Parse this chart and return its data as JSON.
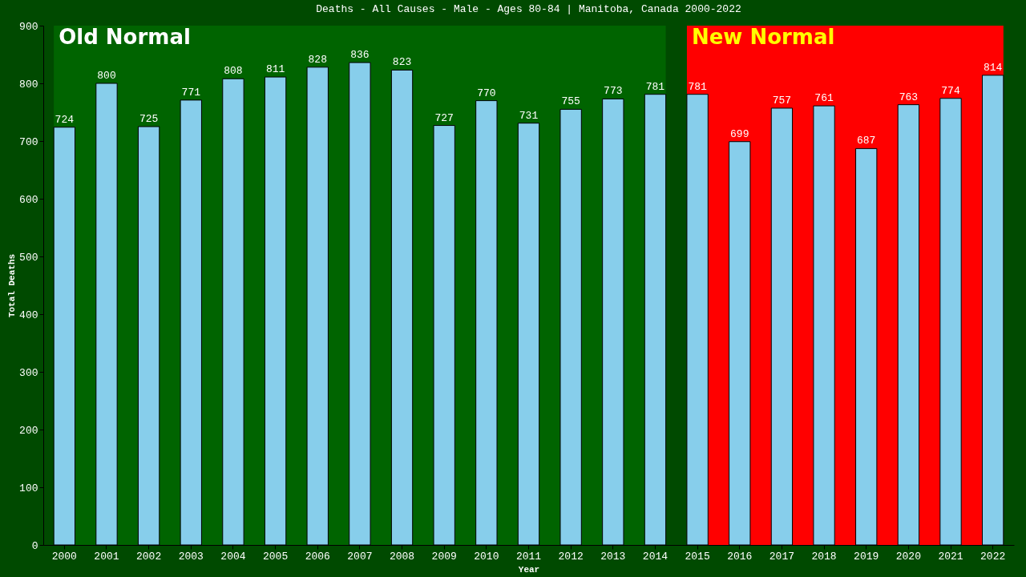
{
  "chart_data": {
    "type": "bar",
    "title": "Deaths - All Causes - Male - Ages 80-84 | Manitoba, Canada 2000-2022",
    "xlabel": "Year",
    "ylabel": "Total Deaths",
    "categories": [
      "2000",
      "2001",
      "2002",
      "2003",
      "2004",
      "2005",
      "2006",
      "2007",
      "2008",
      "2009",
      "2010",
      "2011",
      "2012",
      "2013",
      "2014",
      "2015",
      "2016",
      "2017",
      "2018",
      "2019",
      "2020",
      "2021",
      "2022"
    ],
    "values": [
      724,
      800,
      725,
      771,
      808,
      811,
      828,
      836,
      823,
      727,
      770,
      731,
      755,
      773,
      781,
      781,
      699,
      757,
      761,
      687,
      763,
      774,
      814
    ],
    "color": "#87ceeb",
    "data_labels": true,
    "ylim": [
      0,
      900
    ],
    "yticks": [
      0,
      100,
      200,
      300,
      400,
      500,
      600,
      700,
      800,
      900
    ],
    "grid": false,
    "bands": [
      {
        "axis": "x",
        "from": "2000",
        "to": "2014",
        "label": "Old Normal",
        "color": "#006400"
      },
      {
        "axis": "x",
        "from": "2015",
        "to": "2022",
        "label": "New Normal",
        "color": "#ff0000"
      }
    ]
  }
}
